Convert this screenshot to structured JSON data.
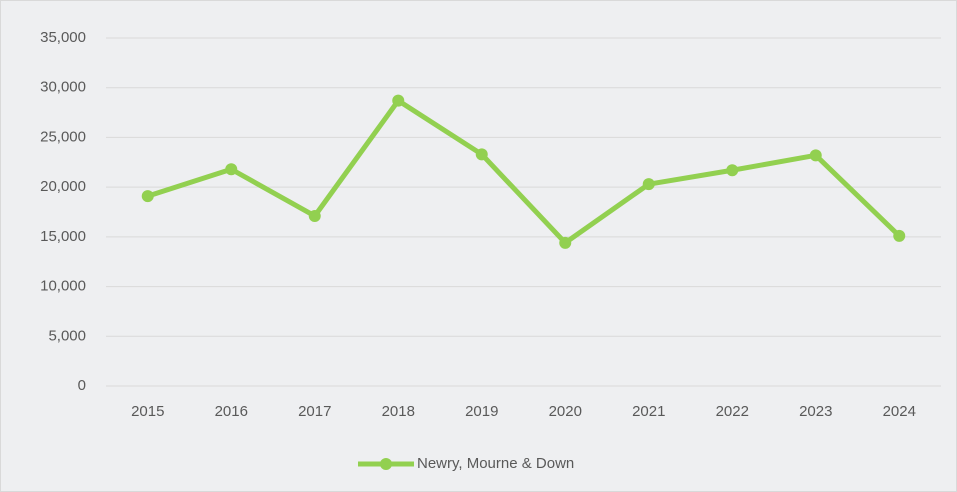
{
  "chart_data": {
    "type": "line",
    "categories": [
      "2015",
      "2016",
      "2017",
      "2018",
      "2019",
      "2020",
      "2021",
      "2022",
      "2023",
      "2024"
    ],
    "series": [
      {
        "name": "Newry, Mourne & Down",
        "color": "#92d050",
        "values": [
          19100,
          21800,
          17100,
          28700,
          23300,
          14400,
          20300,
          21700,
          23200,
          15100
        ]
      }
    ],
    "ylim": [
      0,
      35000
    ],
    "yticks": [
      0,
      {
        "value": 5000,
        "label": "5,000"
      },
      {
        "value": 10000,
        "label": "10,000"
      },
      {
        "value": 15000,
        "label": "15,000"
      },
      {
        "value": 20000,
        "label": "20,000"
      },
      {
        "value": 25000,
        "label": "25,000"
      },
      {
        "value": 30000,
        "label": "30,000"
      },
      {
        "value": 35000,
        "label": "35,000"
      }
    ],
    "grid": true,
    "legend": "bottom"
  }
}
